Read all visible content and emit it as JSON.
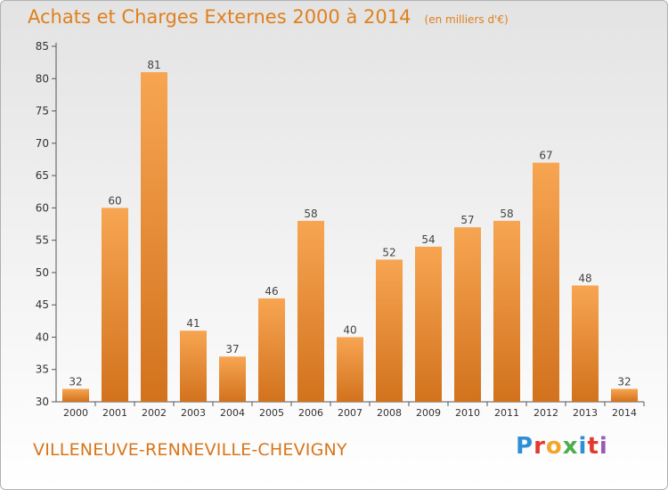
{
  "header": {
    "title": "Achats et Charges Externes 2000 à 2014",
    "subtitle": "(en milliers d'€)"
  },
  "footer": {
    "commune": "VILLENEUVE-RENNEVILLE-CHEVIGNY",
    "logo": [
      "P",
      "r",
      "o",
      "x",
      "i",
      "t",
      "i"
    ]
  },
  "colors": {
    "title": "#e0801c",
    "bar_top": "#f7a552",
    "bar_bottom": "#d2721d",
    "axis": "#555555"
  },
  "chart_data": {
    "type": "bar",
    "title": "Achats et Charges Externes 2000 à 2014",
    "subtitle": "(en milliers d'€)",
    "categories": [
      "2000",
      "2001",
      "2002",
      "2003",
      "2004",
      "2005",
      "2006",
      "2007",
      "2008",
      "2009",
      "2010",
      "2011",
      "2012",
      "2013",
      "2014"
    ],
    "values": [
      32,
      60,
      81,
      41,
      37,
      46,
      58,
      40,
      52,
      54,
      57,
      58,
      67,
      48,
      32
    ],
    "ylim": [
      30,
      85
    ],
    "yticks": [
      30,
      35,
      40,
      45,
      50,
      55,
      60,
      65,
      70,
      75,
      80,
      85
    ],
    "xlabel": "",
    "ylabel": "",
    "grid": false
  }
}
